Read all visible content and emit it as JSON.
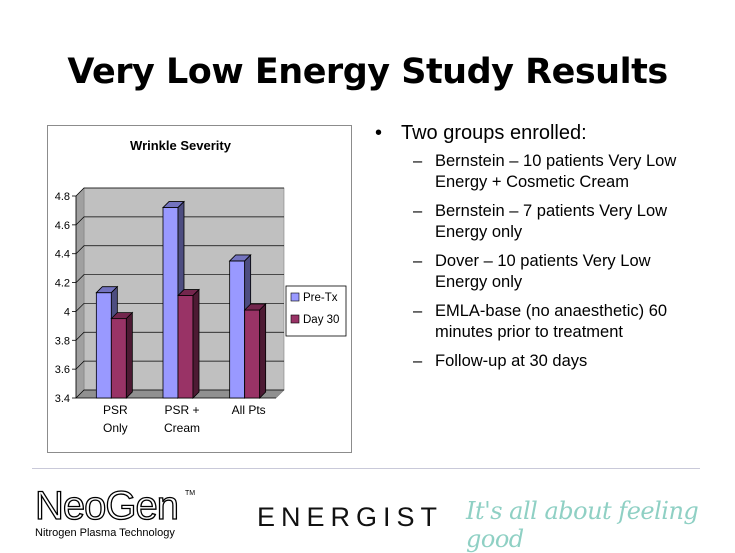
{
  "slide": {
    "title": "Very Low Energy Study Results"
  },
  "bullets": {
    "head": "Two groups enrolled:",
    "bullet_symbol": "•",
    "dash_symbol": "–",
    "items": [
      "Bernstein – 10 patients Very Low Energy + Cosmetic Cream",
      "Bernstein – 7 patients Very Low Energy only",
      "Dover – 10 patients Very Low Energy only",
      "EMLA-base (no anaesthetic) 60 minutes prior to treatment",
      "Follow-up at 30 days"
    ]
  },
  "footer": {
    "neogen_name": "NeoGen",
    "neogen_tm": "TM",
    "neogen_tagline": "Nitrogen Plasma Technology",
    "energist": "ENERGIST",
    "slogan": "It's all about feeling good"
  },
  "colors": {
    "pre_tx": "#9999ff",
    "day_30": "#993366",
    "plot_bg": "#c0c0c0",
    "slogan": "#8fd0c4"
  },
  "chart_data": {
    "type": "bar",
    "title": "Wrinkle Severity",
    "xlabel": "",
    "ylabel": "",
    "categories": [
      "PSR Only",
      "PSR + Cream",
      "All Pts"
    ],
    "category_lines": [
      [
        "PSR",
        "Only"
      ],
      [
        "PSR +",
        "Cream"
      ],
      [
        "All Pts"
      ]
    ],
    "series": [
      {
        "name": "Pre-Tx",
        "values": [
          4.13,
          4.72,
          4.35
        ],
        "color": "#9999ff"
      },
      {
        "name": "Day 30",
        "values": [
          3.95,
          4.11,
          4.01
        ],
        "color": "#993366"
      }
    ],
    "ylim": [
      3.4,
      4.8
    ],
    "yticks": [
      3.4,
      3.6,
      3.8,
      4,
      4.2,
      4.4,
      4.6,
      4.8
    ],
    "ytick_labels": [
      "3.4",
      "3.6",
      "3.8",
      "4",
      "4.2",
      "4.4",
      "4.6",
      "4.8"
    ],
    "grid": true,
    "legend_position": "right",
    "style": "3d-column"
  }
}
